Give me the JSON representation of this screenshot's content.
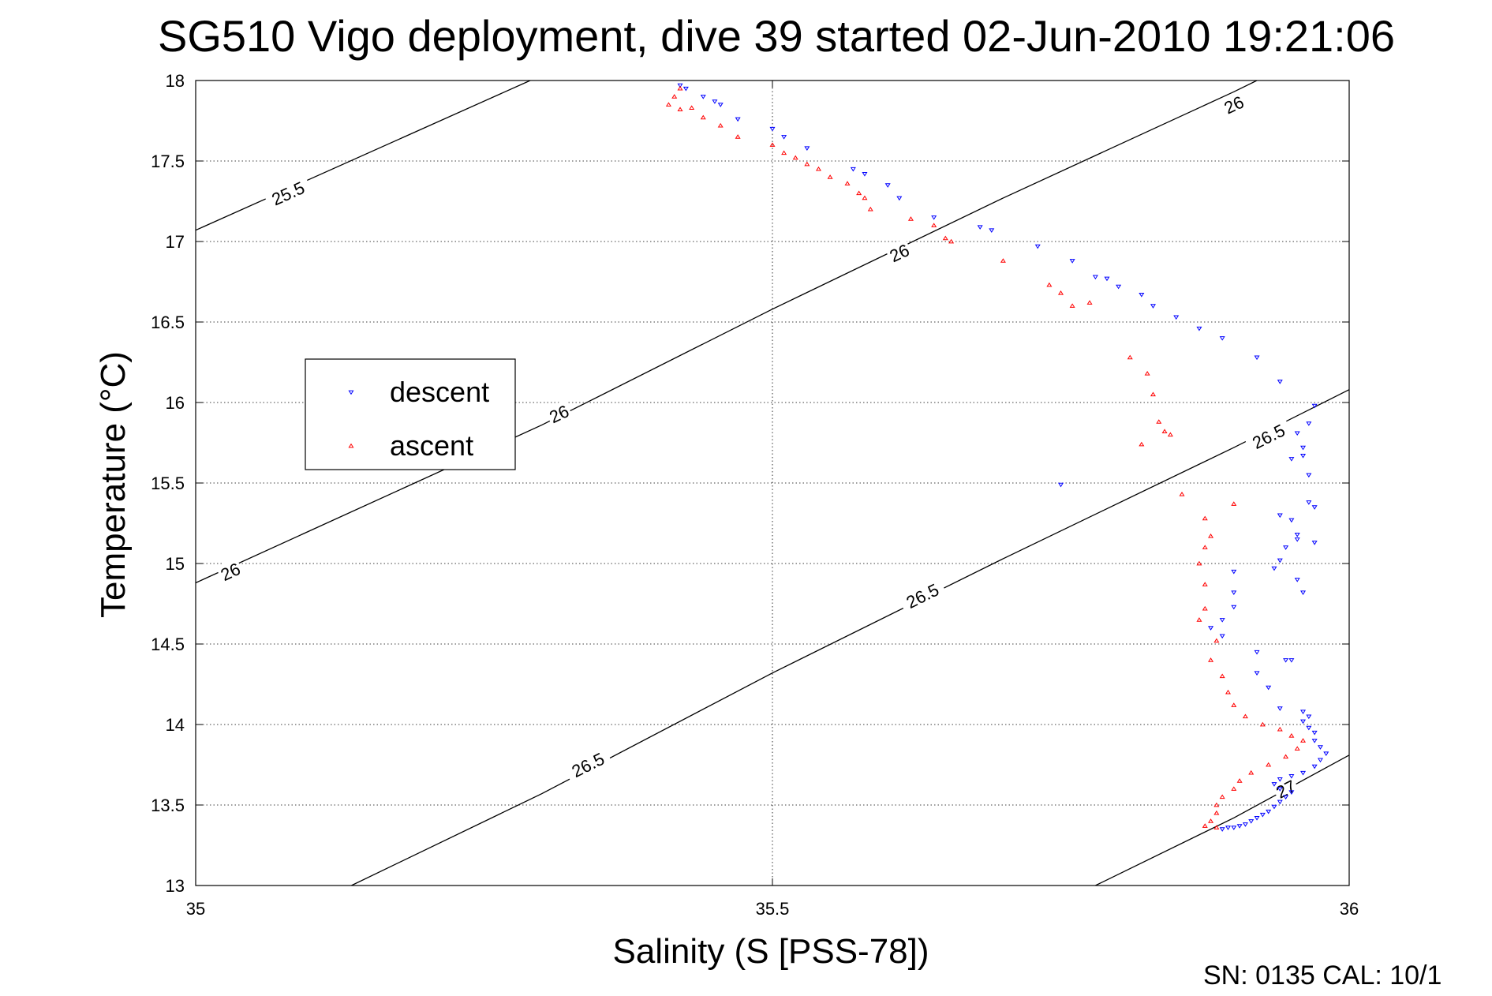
{
  "chart_data": {
    "type": "scatter",
    "title": "SG510 Vigo deployment, dive 39 started 02-Jun-2010 19:21:06",
    "xlabel": "Salinity (S [PSS-78])",
    "ylabel": "Temperature (°C)",
    "xlim": [
      35,
      36
    ],
    "ylim": [
      13,
      18
    ],
    "xticks": [
      35,
      35.5,
      36
    ],
    "xtick_labels": [
      "35",
      "35.5",
      "36"
    ],
    "yticks": [
      13,
      13.5,
      14,
      14.5,
      15,
      15.5,
      16,
      16.5,
      17,
      17.5,
      18
    ],
    "ytick_labels": [
      "13",
      "13.5",
      "14",
      "14.5",
      "15",
      "15.5",
      "16",
      "16.5",
      "17",
      "17.5",
      "18"
    ],
    "grid": true,
    "legend_position": "left",
    "footer": "SN: 0135  CAL: 10/1",
    "colors": {
      "descent": "#0000ff",
      "ascent": "#ff0000",
      "contour": "#000000",
      "grid": "#000000"
    },
    "series": [
      {
        "name": "descent",
        "marker": "triangle-down",
        "points": [
          [
            35.42,
            17.97
          ],
          [
            35.425,
            17.95
          ],
          [
            35.44,
            17.9
          ],
          [
            35.45,
            17.87
          ],
          [
            35.455,
            17.85
          ],
          [
            35.47,
            17.76
          ],
          [
            35.5,
            17.7
          ],
          [
            35.51,
            17.65
          ],
          [
            35.53,
            17.58
          ],
          [
            35.57,
            17.45
          ],
          [
            35.58,
            17.42
          ],
          [
            35.6,
            17.35
          ],
          [
            35.61,
            17.27
          ],
          [
            35.64,
            17.15
          ],
          [
            35.68,
            17.09
          ],
          [
            35.69,
            17.07
          ],
          [
            35.73,
            16.97
          ],
          [
            35.76,
            16.88
          ],
          [
            35.78,
            16.78
          ],
          [
            35.79,
            16.77
          ],
          [
            35.8,
            16.72
          ],
          [
            35.82,
            16.67
          ],
          [
            35.83,
            16.6
          ],
          [
            35.85,
            16.53
          ],
          [
            35.87,
            16.46
          ],
          [
            35.89,
            16.4
          ],
          [
            35.92,
            16.28
          ],
          [
            35.94,
            16.13
          ],
          [
            35.97,
            15.98
          ],
          [
            35.965,
            15.87
          ],
          [
            35.955,
            15.81
          ],
          [
            35.96,
            15.72
          ],
          [
            35.96,
            15.67
          ],
          [
            35.95,
            15.65
          ],
          [
            35.965,
            15.55
          ],
          [
            35.75,
            15.49
          ],
          [
            35.965,
            15.38
          ],
          [
            35.97,
            15.35
          ],
          [
            35.94,
            15.3
          ],
          [
            35.95,
            15.27
          ],
          [
            35.955,
            15.18
          ],
          [
            35.955,
            15.15
          ],
          [
            35.97,
            15.13
          ],
          [
            35.945,
            15.1
          ],
          [
            35.94,
            15.02
          ],
          [
            35.935,
            14.97
          ],
          [
            35.9,
            14.95
          ],
          [
            35.955,
            14.9
          ],
          [
            35.96,
            14.82
          ],
          [
            35.9,
            14.82
          ],
          [
            35.9,
            14.73
          ],
          [
            35.89,
            14.65
          ],
          [
            35.88,
            14.6
          ],
          [
            35.89,
            14.55
          ],
          [
            35.92,
            14.45
          ],
          [
            35.945,
            14.4
          ],
          [
            35.95,
            14.4
          ],
          [
            35.92,
            14.32
          ],
          [
            35.93,
            14.23
          ],
          [
            35.94,
            14.1
          ],
          [
            35.96,
            14.08
          ],
          [
            35.965,
            14.05
          ],
          [
            35.96,
            14.02
          ],
          [
            35.965,
            13.98
          ],
          [
            35.97,
            13.95
          ],
          [
            35.97,
            13.9
          ],
          [
            35.975,
            13.86
          ],
          [
            35.98,
            13.82
          ],
          [
            35.975,
            13.78
          ],
          [
            35.97,
            13.74
          ],
          [
            35.96,
            13.7
          ],
          [
            35.95,
            13.68
          ],
          [
            35.94,
            13.66
          ],
          [
            35.935,
            13.63
          ],
          [
            35.94,
            13.6
          ],
          [
            35.95,
            13.58
          ],
          [
            35.945,
            13.55
          ],
          [
            35.94,
            13.52
          ],
          [
            35.935,
            13.49
          ],
          [
            35.93,
            13.46
          ],
          [
            35.925,
            13.44
          ],
          [
            35.92,
            13.42
          ],
          [
            35.915,
            13.4
          ],
          [
            35.91,
            13.38
          ],
          [
            35.905,
            13.37
          ],
          [
            35.9,
            13.36
          ],
          [
            35.895,
            13.36
          ],
          [
            35.89,
            13.35
          ]
        ]
      },
      {
        "name": "ascent",
        "marker": "triangle-up",
        "points": [
          [
            35.42,
            17.95
          ],
          [
            35.415,
            17.9
          ],
          [
            35.41,
            17.85
          ],
          [
            35.42,
            17.82
          ],
          [
            35.43,
            17.83
          ],
          [
            35.44,
            17.77
          ],
          [
            35.455,
            17.72
          ],
          [
            35.47,
            17.65
          ],
          [
            35.5,
            17.6
          ],
          [
            35.51,
            17.55
          ],
          [
            35.52,
            17.52
          ],
          [
            35.53,
            17.48
          ],
          [
            35.54,
            17.45
          ],
          [
            35.55,
            17.4
          ],
          [
            35.565,
            17.36
          ],
          [
            35.575,
            17.3
          ],
          [
            35.58,
            17.27
          ],
          [
            35.585,
            17.2
          ],
          [
            35.62,
            17.14
          ],
          [
            35.64,
            17.1
          ],
          [
            35.65,
            17.02
          ],
          [
            35.655,
            17.0
          ],
          [
            35.7,
            16.88
          ],
          [
            35.74,
            16.73
          ],
          [
            35.75,
            16.68
          ],
          [
            35.76,
            16.6
          ],
          [
            35.775,
            16.62
          ],
          [
            35.81,
            16.28
          ],
          [
            35.825,
            16.18
          ],
          [
            35.83,
            16.05
          ],
          [
            35.835,
            15.88
          ],
          [
            35.84,
            15.82
          ],
          [
            35.845,
            15.8
          ],
          [
            35.82,
            15.74
          ],
          [
            35.855,
            15.43
          ],
          [
            35.875,
            15.28
          ],
          [
            35.9,
            15.37
          ],
          [
            35.88,
            15.17
          ],
          [
            35.875,
            15.1
          ],
          [
            35.87,
            15.0
          ],
          [
            35.875,
            14.87
          ],
          [
            35.875,
            14.72
          ],
          [
            35.87,
            14.65
          ],
          [
            35.885,
            14.52
          ],
          [
            35.88,
            14.4
          ],
          [
            35.89,
            14.3
          ],
          [
            35.895,
            14.2
          ],
          [
            35.9,
            14.12
          ],
          [
            35.91,
            14.05
          ],
          [
            35.925,
            14.0
          ],
          [
            35.94,
            13.97
          ],
          [
            35.95,
            13.93
          ],
          [
            35.96,
            13.9
          ],
          [
            35.955,
            13.85
          ],
          [
            35.945,
            13.8
          ],
          [
            35.93,
            13.75
          ],
          [
            35.915,
            13.7
          ],
          [
            35.905,
            13.65
          ],
          [
            35.9,
            13.6
          ],
          [
            35.89,
            13.55
          ],
          [
            35.885,
            13.5
          ],
          [
            35.885,
            13.45
          ],
          [
            35.88,
            13.4
          ],
          [
            35.875,
            13.37
          ],
          [
            35.885,
            13.36
          ]
        ]
      }
    ],
    "isopycnals": [
      {
        "label": "25.5",
        "points": [
          [
            35,
            17.07
          ],
          [
            35.29,
            18.0
          ]
        ],
        "labels_at": [
          [
            35.08,
            17.3
          ]
        ]
      },
      {
        "label": "26",
        "points": [
          [
            35,
            14.88
          ],
          [
            35.3,
            15.86
          ],
          [
            35.5,
            16.58
          ],
          [
            35.7,
            17.27
          ],
          [
            35.9,
            17.93
          ],
          [
            35.92,
            18.0
          ]
        ],
        "labels_at": [
          [
            35.03,
            14.95
          ],
          [
            35.315,
            15.93
          ],
          [
            35.61,
            16.93
          ],
          [
            35.9,
            17.85
          ]
        ]
      },
      {
        "label": "26.5",
        "points": [
          [
            35.135,
            13.0
          ],
          [
            35.3,
            13.57
          ],
          [
            35.5,
            14.32
          ],
          [
            35.7,
            15.03
          ],
          [
            35.9,
            15.72
          ],
          [
            36,
            16.08
          ]
        ],
        "labels_at": [
          [
            35.34,
            13.75
          ],
          [
            35.63,
            14.8
          ],
          [
            35.93,
            15.79
          ]
        ]
      },
      {
        "label": "27",
        "points": [
          [
            35.78,
            13.0
          ],
          [
            35.9,
            13.42
          ],
          [
            36,
            13.81
          ]
        ],
        "labels_at": [
          [
            35.945,
            13.6
          ]
        ]
      }
    ]
  }
}
